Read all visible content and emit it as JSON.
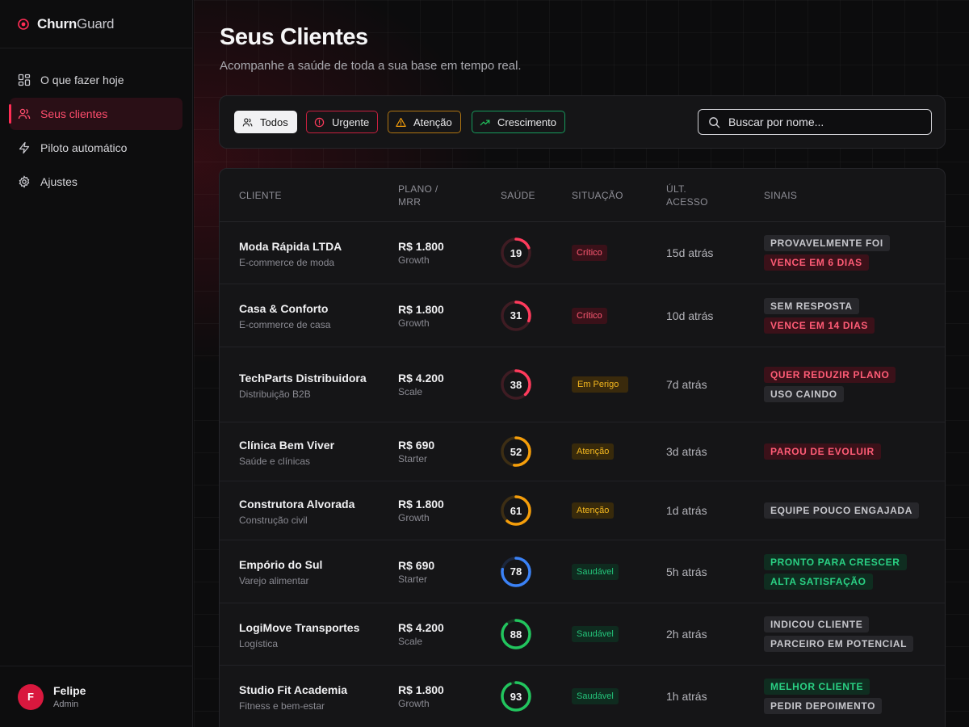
{
  "brand": {
    "name_bold": "Churn",
    "name_light": "Guard"
  },
  "nav": [
    {
      "label": "O que fazer hoje",
      "icon": "dashboard-icon",
      "active": false
    },
    {
      "label": "Seus clientes",
      "icon": "users-icon",
      "active": true
    },
    {
      "label": "Piloto automático",
      "icon": "bolt-icon",
      "active": false
    },
    {
      "label": "Ajustes",
      "icon": "gear-icon",
      "active": false
    }
  ],
  "user": {
    "initial": "F",
    "name": "Felipe",
    "role": "Admin"
  },
  "page": {
    "title": "Seus Clientes",
    "subtitle": "Acompanhe a saúde de toda a sua base em tempo real."
  },
  "filters": {
    "all": "Todos",
    "urgent": "Urgente",
    "attention": "Atenção",
    "growth": "Crescimento",
    "selected": "Todos"
  },
  "search": {
    "placeholder": "Buscar por nome...",
    "value": ""
  },
  "table": {
    "headers": {
      "client": "CLIENTE",
      "plan_line1": "PLANO /",
      "plan_line2": "MRR",
      "health": "SAÚDE",
      "status": "SITUAÇÃO",
      "last_line1": "ÚLT.",
      "last_line2": "ACESSO",
      "signals": "SINAIS"
    },
    "rows": [
      {
        "name": "Moda Rápida LTDA",
        "segment": "E-commerce de moda",
        "price": "R$ 1.800",
        "plan": "Growth",
        "health": 19,
        "status": "Crítico",
        "last": "15d atrás",
        "signals": [
          "PROVAVELMENTE FOI",
          "VENCE EM 6 DIAS"
        ]
      },
      {
        "name": "Casa & Conforto",
        "segment": "E-commerce de casa",
        "price": "R$ 1.800",
        "plan": "Growth",
        "health": 31,
        "status": "Crítico",
        "last": "10d atrás",
        "signals": [
          "SEM RESPOSTA",
          "VENCE EM 14 DIAS"
        ]
      },
      {
        "name": "TechParts Distribuidora",
        "segment": "Distribuição B2B",
        "price": "R$ 4.200",
        "plan": "Scale",
        "health": 38,
        "status": "Em Perigo",
        "last": "7d atrás",
        "signals": [
          "QUER REDUZIR PLANO",
          "USO CAINDO"
        ]
      },
      {
        "name": "Clínica Bem Viver",
        "segment": "Saúde e clínicas",
        "price": "R$ 690",
        "plan": "Starter",
        "health": 52,
        "status": "Atenção",
        "last": "3d atrás",
        "signals": [
          "PAROU DE EVOLUIR"
        ]
      },
      {
        "name": "Construtora Alvorada",
        "segment": "Construção civil",
        "price": "R$ 1.800",
        "plan": "Growth",
        "health": 61,
        "status": "Atenção",
        "last": "1d atrás",
        "signals": [
          "EQUIPE POUCO ENGAJADA"
        ]
      },
      {
        "name": "Empório do Sul",
        "segment": "Varejo alimentar",
        "price": "R$ 690",
        "plan": "Starter",
        "health": 78,
        "status": "Saudável",
        "last": "5h atrás",
        "signals": [
          "PRONTO PARA CRESCER",
          "ALTA SATISFAÇÃO"
        ]
      },
      {
        "name": "LogiMove Transportes",
        "segment": "Logística",
        "price": "R$ 4.200",
        "plan": "Scale",
        "health": 88,
        "status": "Saudável",
        "last": "2h atrás",
        "signals": [
          "INDICOU CLIENTE",
          "PARCEIRO EM POTENCIAL"
        ]
      },
      {
        "name": "Studio Fit Academia",
        "segment": "Fitness e bem-estar",
        "price": "R$ 1.800",
        "plan": "Growth",
        "health": 93,
        "status": "Saudável",
        "last": "1h atrás",
        "signals": [
          "MELHOR CLIENTE",
          "PEDIR DEPOIMENTO"
        ]
      }
    ]
  },
  "colors": {
    "accent": "#ff2d55",
    "critical": "#ff3b5c",
    "warning": "#f59e0b",
    "healthy_blue": "#3b82f6",
    "healthy_green": "#22c55e"
  }
}
